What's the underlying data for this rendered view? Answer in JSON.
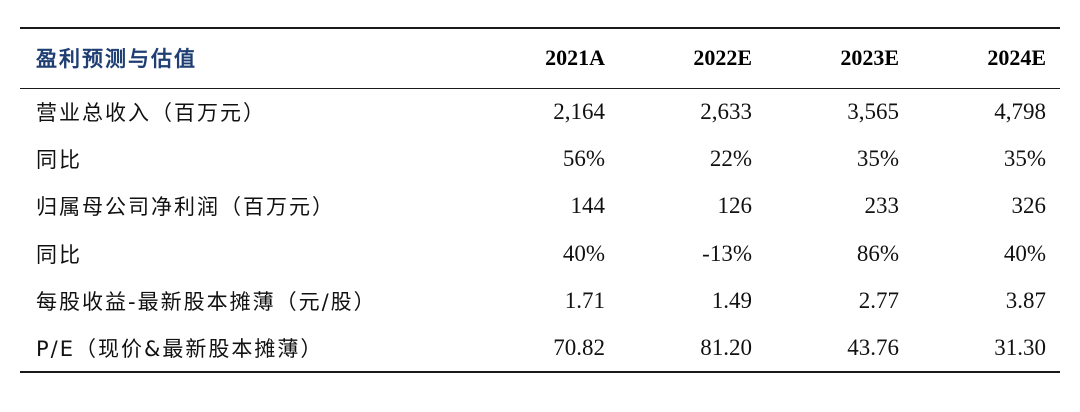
{
  "table": {
    "header": {
      "label": "盈利预测与估值",
      "years": [
        "2021A",
        "2022E",
        "2023E",
        "2024E"
      ]
    },
    "rows": [
      {
        "label": "营业总收入（百万元）",
        "values": [
          "2,164",
          "2,633",
          "3,565",
          "4,798"
        ]
      },
      {
        "label": "同比",
        "values": [
          "56%",
          "22%",
          "35%",
          "35%"
        ]
      },
      {
        "label": "归属母公司净利润（百万元）",
        "values": [
          "144",
          "126",
          "233",
          "326"
        ]
      },
      {
        "label": "同比",
        "values": [
          "40%",
          "-13%",
          "86%",
          "40%"
        ]
      },
      {
        "label": "每股收益-最新股本摊薄（元/股）",
        "values": [
          "1.71",
          "1.49",
          "2.77",
          "3.87"
        ]
      },
      {
        "label": "P/E（现价&最新股本摊薄）",
        "values": [
          "70.82",
          "81.20",
          "43.76",
          "31.30"
        ]
      }
    ]
  },
  "colors": {
    "header_label": "#1f3f73",
    "rule": "#1a1a1a"
  }
}
